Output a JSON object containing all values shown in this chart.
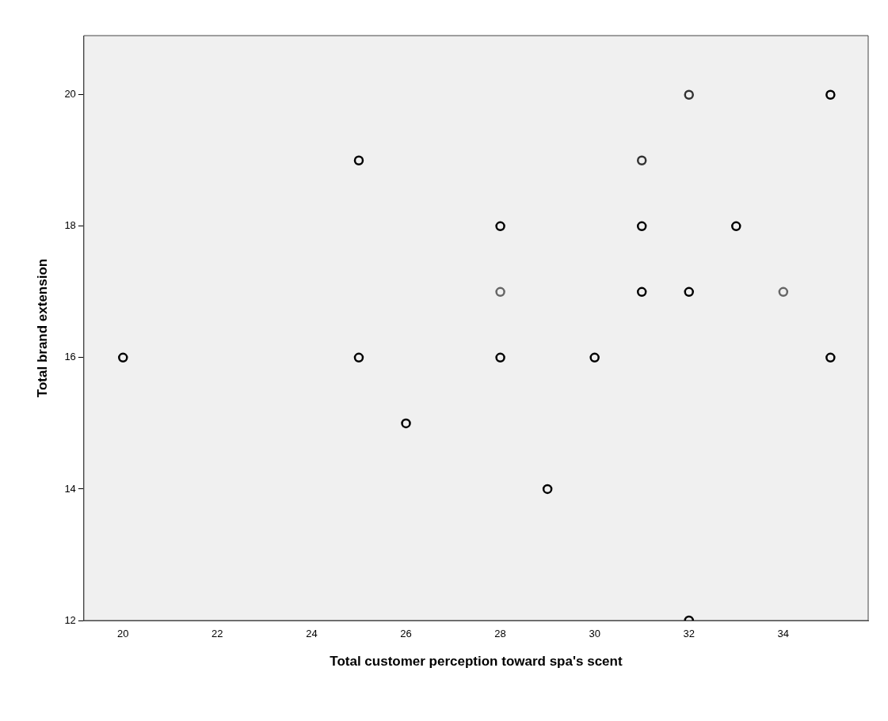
{
  "chart_data": {
    "type": "scatter",
    "xlabel": "Total customer perception toward spa's scent",
    "ylabel": "Total brand extension",
    "x": [
      20,
      25,
      25,
      26,
      28,
      28,
      28,
      29,
      30,
      31,
      31,
      31,
      32,
      32,
      32,
      33,
      34,
      35,
      35
    ],
    "values": [
      16,
      19,
      16,
      15,
      18,
      17,
      16,
      14,
      16,
      19,
      18,
      17,
      20,
      17,
      12,
      18,
      17,
      20,
      16
    ],
    "colors": [
      "#000000",
      "#000000",
      "#000000",
      "#000000",
      "#000000",
      "#666666",
      "#000000",
      "#000000",
      "#000000",
      "#333333",
      "#000000",
      "#000000",
      "#333333",
      "#000000",
      "#000000",
      "#000000",
      "#666666",
      "#000000",
      "#000000"
    ],
    "xlim": [
      19.17,
      35.8
    ],
    "xticks": [
      20,
      22,
      24,
      26,
      28,
      30,
      32,
      34
    ],
    "ylim": [
      12,
      20.9
    ],
    "yticks": [
      12,
      14,
      16,
      18,
      20
    ],
    "grid": false,
    "legend": false,
    "marker": "circle"
  }
}
